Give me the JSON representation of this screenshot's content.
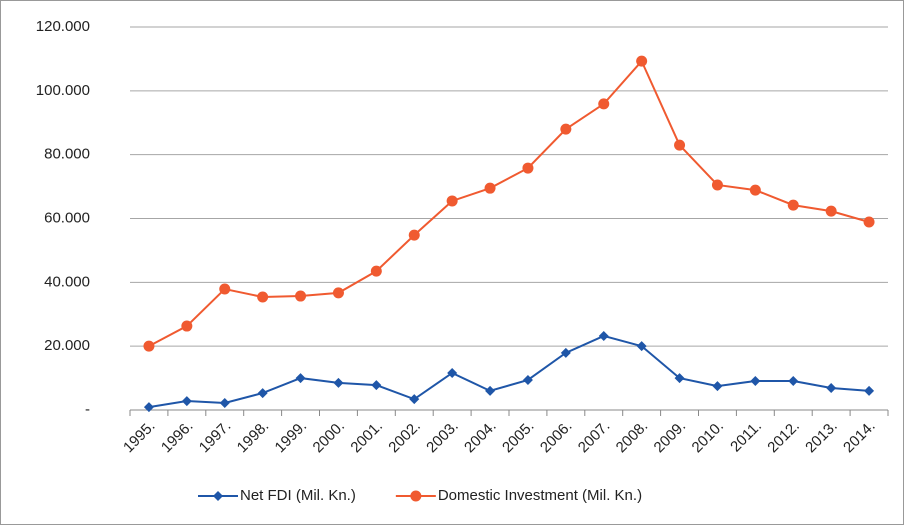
{
  "chart_data": {
    "type": "line",
    "categories": [
      "1995.",
      "1996.",
      "1997.",
      "1998.",
      "1999.",
      "2000.",
      "2001.",
      "2002.",
      "2003.",
      "2004.",
      "2005.",
      "2006.",
      "2007.",
      "2008.",
      "2009.",
      "2010.",
      "2011.",
      "2012.",
      "2013.",
      "2014."
    ],
    "series": [
      {
        "name": "Net FDI (Mil. Kn.)",
        "color": "#1f56a8",
        "marker": "diamond",
        "values": [
          900,
          2800,
          2200,
          5300,
          10000,
          8500,
          7800,
          3400,
          11600,
          6000,
          9400,
          17900,
          23200,
          20000,
          10000,
          7500,
          9100,
          9100,
          6900,
          6000
        ]
      },
      {
        "name": "Domestic Investment (Mil. Kn.)",
        "color": "#f05a30",
        "marker": "circle",
        "values": [
          20000,
          26300,
          37900,
          35400,
          35700,
          36700,
          43500,
          54800,
          65500,
          69500,
          75800,
          88000,
          95900,
          109300,
          83000,
          70500,
          68900,
          64200,
          62300,
          58900
        ]
      }
    ],
    "ylim": [
      0,
      120000
    ],
    "yticks": [
      {
        "value": 0,
        "label": "-"
      },
      {
        "value": 20000,
        "label": "20.000"
      },
      {
        "value": 40000,
        "label": "40.000"
      },
      {
        "value": 60000,
        "label": "60.000"
      },
      {
        "value": 80000,
        "label": "80.000"
      },
      {
        "value": 100000,
        "label": "100.000"
      },
      {
        "value": 120000,
        "label": "120.000"
      }
    ],
    "grid": true,
    "legend": "bottom"
  }
}
